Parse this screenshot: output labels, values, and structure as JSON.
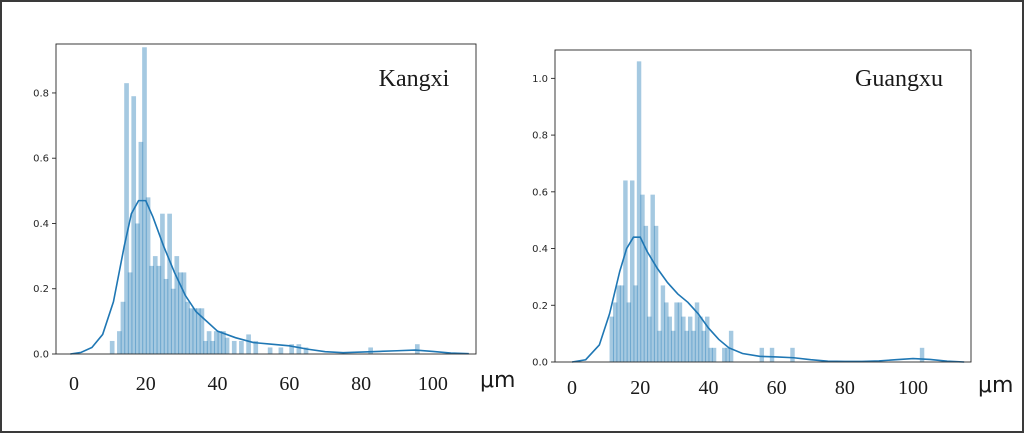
{
  "chart_data": [
    {
      "type": "bar",
      "title": "Kangxi",
      "unit": "μm",
      "xlim": [
        -5,
        112
      ],
      "ylim": [
        0,
        0.95
      ],
      "yticks": [
        "0.0",
        "0.2",
        "0.4",
        "0.6",
        "0.8"
      ],
      "xticks": [
        "0",
        "20",
        "40",
        "60",
        "80",
        "100"
      ],
      "grid": false,
      "series": [
        {
          "kind": "histogram",
          "bin_width": 1.3,
          "bins": [
            [
              10,
              0.04
            ],
            [
              12,
              0.07
            ],
            [
              13,
              0.16
            ],
            [
              14,
              0.83
            ],
            [
              15,
              0.25
            ],
            [
              16,
              0.79
            ],
            [
              17,
              0.4
            ],
            [
              18,
              0.65
            ],
            [
              19,
              0.94
            ],
            [
              20,
              0.48
            ],
            [
              21,
              0.27
            ],
            [
              22,
              0.3
            ],
            [
              23,
              0.27
            ],
            [
              24,
              0.43
            ],
            [
              25,
              0.23
            ],
            [
              26,
              0.43
            ],
            [
              27,
              0.2
            ],
            [
              28,
              0.3
            ],
            [
              29,
              0.25
            ],
            [
              30,
              0.25
            ],
            [
              31,
              0.16
            ],
            [
              32,
              0.14
            ],
            [
              33,
              0.14
            ],
            [
              34,
              0.14
            ],
            [
              35,
              0.14
            ],
            [
              36,
              0.04
            ],
            [
              37,
              0.07
            ],
            [
              38,
              0.04
            ],
            [
              39,
              0.07
            ],
            [
              40,
              0.07
            ],
            [
              41,
              0.07
            ],
            [
              42,
              0.05
            ],
            [
              44,
              0.04
            ],
            [
              46,
              0.04
            ],
            [
              48,
              0.06
            ],
            [
              50,
              0.04
            ],
            [
              54,
              0.02
            ],
            [
              57,
              0.02
            ],
            [
              60,
              0.03
            ],
            [
              62,
              0.03
            ],
            [
              64,
              0.02
            ],
            [
              82,
              0.02
            ],
            [
              95,
              0.03
            ]
          ]
        },
        {
          "kind": "kde",
          "points": [
            [
              -1,
              0.0
            ],
            [
              2,
              0.005
            ],
            [
              5,
              0.02
            ],
            [
              8,
              0.06
            ],
            [
              11,
              0.16
            ],
            [
              14,
              0.33
            ],
            [
              16,
              0.43
            ],
            [
              18,
              0.47
            ],
            [
              20,
              0.47
            ],
            [
              22,
              0.42
            ],
            [
              25,
              0.33
            ],
            [
              28,
              0.25
            ],
            [
              31,
              0.18
            ],
            [
              34,
              0.13
            ],
            [
              37,
              0.1
            ],
            [
              40,
              0.07
            ],
            [
              45,
              0.05
            ],
            [
              50,
              0.035
            ],
            [
              55,
              0.03
            ],
            [
              60,
              0.025
            ],
            [
              65,
              0.015
            ],
            [
              70,
              0.007
            ],
            [
              75,
              0.004
            ],
            [
              80,
              0.006
            ],
            [
              85,
              0.008
            ],
            [
              90,
              0.01
            ],
            [
              95,
              0.012
            ],
            [
              100,
              0.008
            ],
            [
              105,
              0.003
            ],
            [
              110,
              0.001
            ]
          ]
        }
      ]
    },
    {
      "type": "bar",
      "title": "Guangxu",
      "unit": "μm",
      "xlim": [
        -5,
        117
      ],
      "ylim": [
        0,
        1.1
      ],
      "yticks": [
        "0.0",
        "0.2",
        "0.4",
        "0.6",
        "0.8",
        "1.0"
      ],
      "xticks": [
        "0",
        "20",
        "40",
        "60",
        "80",
        "100"
      ],
      "grid": false,
      "series": [
        {
          "kind": "histogram",
          "bin_width": 1.3,
          "bins": [
            [
              11,
              0.16
            ],
            [
              12,
              0.21
            ],
            [
              13,
              0.27
            ],
            [
              14,
              0.27
            ],
            [
              15,
              0.64
            ],
            [
              16,
              0.21
            ],
            [
              17,
              0.64
            ],
            [
              18,
              0.27
            ],
            [
              19,
              1.06
            ],
            [
              20,
              0.59
            ],
            [
              21,
              0.48
            ],
            [
              22,
              0.16
            ],
            [
              23,
              0.59
            ],
            [
              24,
              0.48
            ],
            [
              25,
              0.11
            ],
            [
              26,
              0.27
            ],
            [
              27,
              0.21
            ],
            [
              28,
              0.16
            ],
            [
              29,
              0.11
            ],
            [
              30,
              0.21
            ],
            [
              31,
              0.21
            ],
            [
              32,
              0.16
            ],
            [
              33,
              0.11
            ],
            [
              34,
              0.16
            ],
            [
              35,
              0.11
            ],
            [
              36,
              0.21
            ],
            [
              37,
              0.16
            ],
            [
              38,
              0.11
            ],
            [
              39,
              0.16
            ],
            [
              40,
              0.05
            ],
            [
              41,
              0.05
            ],
            [
              44,
              0.05
            ],
            [
              45,
              0.05
            ],
            [
              46,
              0.11
            ],
            [
              55,
              0.05
            ],
            [
              58,
              0.05
            ],
            [
              64,
              0.05
            ],
            [
              102,
              0.05
            ]
          ]
        },
        {
          "kind": "kde",
          "points": [
            [
              0,
              0.0
            ],
            [
              4,
              0.008
            ],
            [
              8,
              0.06
            ],
            [
              11,
              0.17
            ],
            [
              14,
              0.32
            ],
            [
              16,
              0.4
            ],
            [
              18,
              0.44
            ],
            [
              20,
              0.44
            ],
            [
              22,
              0.39
            ],
            [
              25,
              0.33
            ],
            [
              28,
              0.28
            ],
            [
              31,
              0.24
            ],
            [
              34,
              0.21
            ],
            [
              37,
              0.17
            ],
            [
              40,
              0.12
            ],
            [
              43,
              0.08
            ],
            [
              46,
              0.05
            ],
            [
              50,
              0.03
            ],
            [
              55,
              0.02
            ],
            [
              60,
              0.018
            ],
            [
              65,
              0.015
            ],
            [
              70,
              0.008
            ],
            [
              75,
              0.003
            ],
            [
              80,
              0.002
            ],
            [
              85,
              0.002
            ],
            [
              90,
              0.004
            ],
            [
              95,
              0.008
            ],
            [
              100,
              0.012
            ],
            [
              105,
              0.009
            ],
            [
              110,
              0.003
            ],
            [
              115,
              0.0
            ]
          ]
        }
      ]
    }
  ]
}
